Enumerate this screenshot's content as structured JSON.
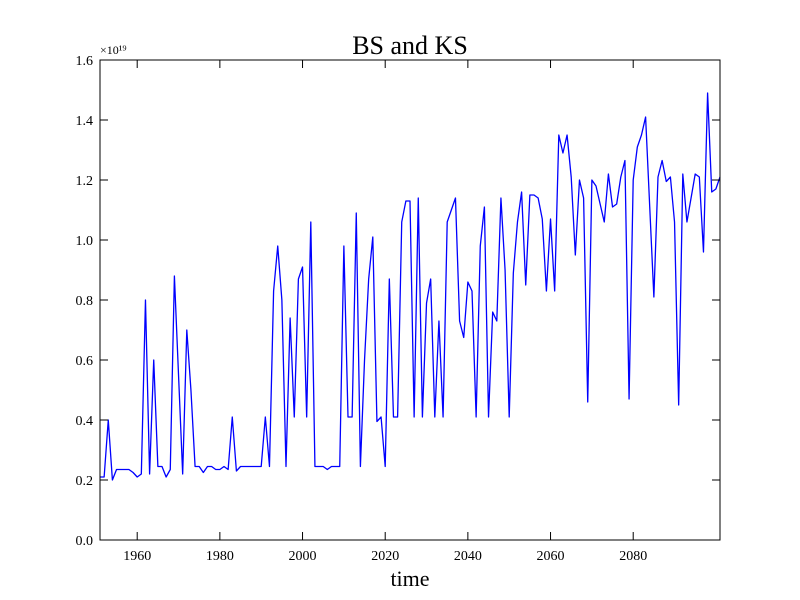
{
  "chart_data": {
    "type": "line",
    "title": "BS and KS",
    "x_label": "time",
    "y_offset_text": "×10¹⁹",
    "color": "#0000ff",
    "x": [
      1951,
      1952,
      1953,
      1954,
      1955,
      1956,
      1957,
      1958,
      1959,
      1960,
      1961,
      1962,
      1963,
      1964,
      1965,
      1966,
      1967,
      1968,
      1969,
      1970,
      1971,
      1972,
      1973,
      1974,
      1975,
      1976,
      1977,
      1978,
      1979,
      1980,
      1981,
      1982,
      1983,
      1984,
      1985,
      1986,
      1987,
      1988,
      1989,
      1990,
      1991,
      1992,
      1993,
      1994,
      1995,
      1996,
      1997,
      1998,
      1999,
      2000,
      2001,
      2002,
      2003,
      2004,
      2005,
      2006,
      2007,
      2008,
      2009,
      2010,
      2011,
      2012,
      2013,
      2014,
      2015,
      2016,
      2017,
      2018,
      2019,
      2020,
      2021,
      2022,
      2023,
      2024,
      2025,
      2026,
      2027,
      2028,
      2029,
      2030,
      2031,
      2032,
      2033,
      2034,
      2035,
      2036,
      2037,
      2038,
      2039,
      2040,
      2041,
      2042,
      2043,
      2044,
      2045,
      2046,
      2047,
      2048,
      2049,
      2050,
      2051,
      2052,
      2053,
      2054,
      2055,
      2056,
      2057,
      2058,
      2059,
      2060,
      2061,
      2062,
      2063,
      2064,
      2065,
      2066,
      2067,
      2068,
      2069,
      2070,
      2071,
      2072,
      2073,
      2074,
      2075,
      2076,
      2077,
      2078,
      2079,
      2080,
      2081,
      2082,
      2083,
      2084,
      2085,
      2086,
      2087,
      2088,
      2089,
      2090,
      2091,
      2092,
      2093,
      2094,
      2095,
      2096,
      2097,
      2098,
      2099,
      2100,
      2101
    ],
    "values": [
      0.21,
      0.21,
      0.4,
      0.2,
      0.235,
      0.235,
      0.235,
      0.235,
      0.225,
      0.21,
      0.22,
      0.8,
      0.22,
      0.6,
      0.245,
      0.245,
      0.21,
      0.235,
      0.88,
      0.55,
      0.22,
      0.7,
      0.5,
      0.245,
      0.245,
      0.225,
      0.245,
      0.245,
      0.235,
      0.235,
      0.245,
      0.235,
      0.41,
      0.23,
      0.245,
      0.245,
      0.245,
      0.245,
      0.245,
      0.245,
      0.41,
      0.245,
      0.83,
      0.98,
      0.8,
      0.245,
      0.74,
      0.41,
      0.87,
      0.91,
      0.41,
      1.06,
      0.245,
      0.245,
      0.245,
      0.235,
      0.245,
      0.245,
      0.245,
      0.98,
      0.41,
      0.41,
      1.09,
      0.245,
      0.6,
      0.87,
      1.01,
      0.395,
      0.41,
      0.245,
      0.87,
      0.41,
      0.41,
      1.06,
      1.13,
      1.13,
      0.41,
      1.14,
      0.41,
      0.79,
      0.87,
      0.41,
      0.73,
      0.41,
      1.06,
      1.1,
      1.14,
      0.73,
      0.675,
      0.86,
      0.83,
      0.41,
      0.98,
      1.11,
      0.41,
      0.76,
      0.73,
      1.14,
      0.9,
      0.41,
      0.89,
      1.06,
      1.16,
      0.85,
      1.15,
      1.15,
      1.14,
      1.07,
      0.83,
      1.07,
      0.83,
      1.35,
      1.29,
      1.35,
      1.21,
      0.95,
      1.2,
      1.14,
      0.46,
      1.2,
      1.18,
      1.12,
      1.06,
      1.22,
      1.11,
      1.12,
      1.21,
      1.265,
      0.47,
      1.2,
      1.31,
      1.35,
      1.41,
      1.11,
      0.81,
      1.21,
      1.265,
      1.195,
      1.21,
      1.06,
      0.45,
      1.22,
      1.06,
      1.14,
      1.22,
      1.21,
      0.96,
      1.49,
      1.16,
      1.17,
      1.21
    ],
    "xlim": [
      1951,
      2101
    ],
    "ylim": [
      0,
      1.6
    ],
    "xticks": [
      1960,
      1980,
      2000,
      2020,
      2040,
      2060,
      2080
    ],
    "yticks": [
      {
        "value": 0,
        "label": "0.0"
      },
      0.2,
      0.4,
      0.6,
      0.8,
      {
        "value": 1,
        "label": "1.0"
      },
      1.2,
      1.4,
      1.6
    ],
    "grid": false
  }
}
